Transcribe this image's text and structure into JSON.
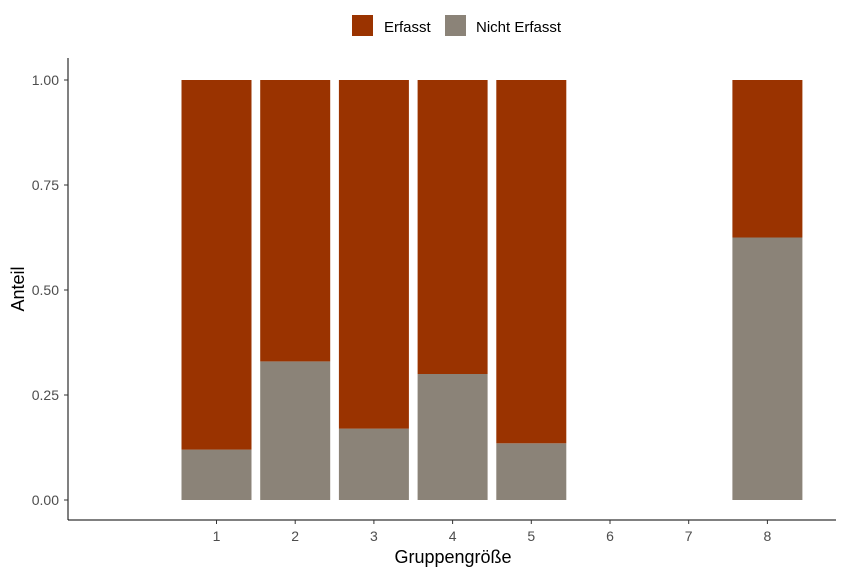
{
  "chart_data": {
    "type": "bar",
    "stacked": true,
    "normalized": true,
    "title": "",
    "xlabel": "Gruppengröße",
    "ylabel": "Anteil",
    "x_ticks": [
      "1",
      "2",
      "3",
      "4",
      "5",
      "6",
      "7",
      "8"
    ],
    "y_ticks": [
      "0.00",
      "0.25",
      "0.50",
      "0.75",
      "1.00"
    ],
    "ylim": [
      0,
      1
    ],
    "categories": [
      "1",
      "2",
      "3",
      "4",
      "5",
      "8"
    ],
    "series": [
      {
        "name": "Nicht Erfasst",
        "color": "#8b8378",
        "values": [
          0.12,
          0.33,
          0.17,
          0.3,
          0.135,
          0.625
        ]
      },
      {
        "name": "Erfasst",
        "color": "#9a3300",
        "values": [
          0.88,
          0.67,
          0.83,
          0.7,
          0.865,
          0.375
        ]
      }
    ],
    "legend": {
      "position": "top",
      "entries": [
        {
          "label": "Erfasst",
          "color": "#9a3300"
        },
        {
          "label": "Nicht Erfasst",
          "color": "#8b8378"
        }
      ]
    },
    "grid": false
  }
}
